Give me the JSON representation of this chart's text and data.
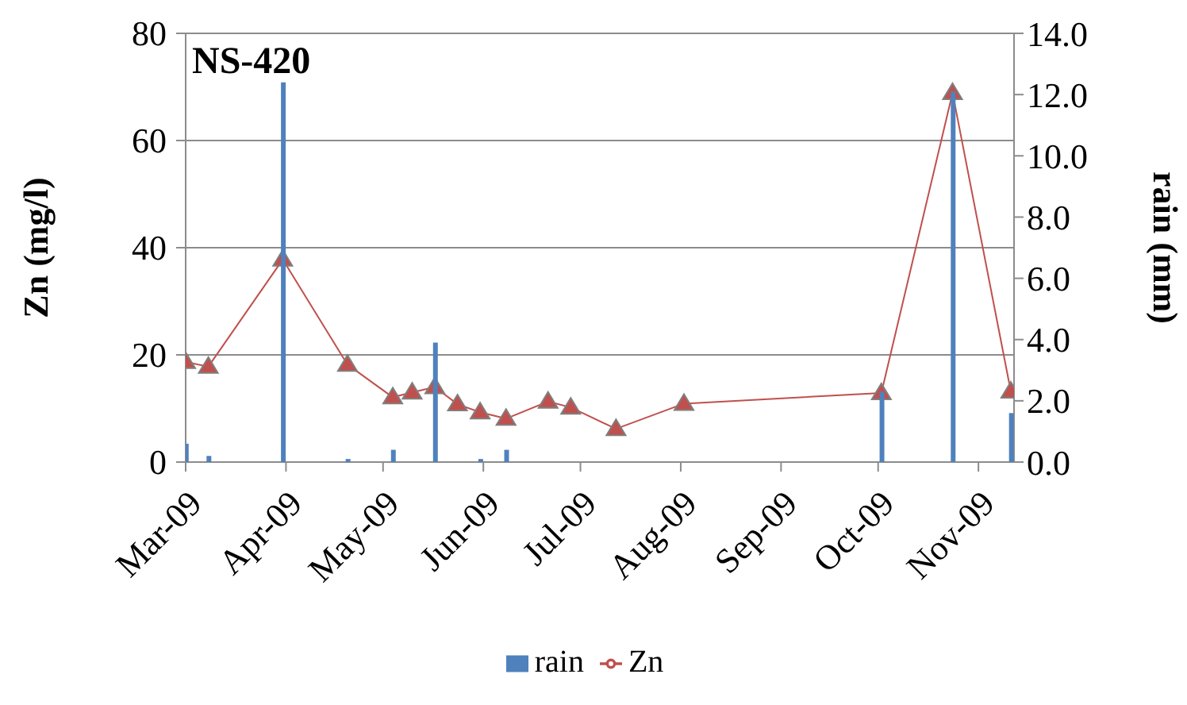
{
  "chart_data": {
    "type": "line",
    "title": "NS-420",
    "ylabel": "Zn (mg/l)",
    "y2label": "rain (mm)",
    "x": [
      "2009-03-01",
      "2009-03-08",
      "2009-03-31",
      "2009-04-20",
      "2009-05-04",
      "2009-05-10",
      "2009-05-17",
      "2009-05-24",
      "2009-05-31",
      "2009-06-08",
      "2009-06-21",
      "2009-06-28",
      "2009-07-12",
      "2009-08-02",
      "2009-10-02",
      "2009-10-24",
      "2009-11-11"
    ],
    "series": [
      {
        "name": "rain",
        "type": "bar",
        "axis": "y2",
        "color": "#4f81bd",
        "values": [
          0.6,
          0.2,
          12.4,
          0.1,
          0.4,
          null,
          3.9,
          null,
          0.1,
          0.4,
          null,
          null,
          null,
          null,
          2.3,
          12.1,
          1.6
        ]
      },
      {
        "name": "Zn",
        "type": "line",
        "color": "#c0504d",
        "marker": "triangle",
        "line_style": "solid",
        "values": [
          18.7,
          17.8,
          37.8,
          18.2,
          12.1,
          13.0,
          14.0,
          10.8,
          9.3,
          8.1,
          11.3,
          10.2,
          6.2,
          10.9,
          12.9,
          68.9,
          13.2
        ]
      }
    ],
    "xlim": [
      "2009-03-01",
      "2009-11-12"
    ],
    "xticks": [
      {
        "value": "2009-03-01",
        "label": "Mar-09"
      },
      {
        "value": "2009-04-01",
        "label": "Apr-09"
      },
      {
        "value": "2009-05-01",
        "label": "May-09"
      },
      {
        "value": "2009-06-01",
        "label": "Jun-09"
      },
      {
        "value": "2009-07-01",
        "label": "Jul-09"
      },
      {
        "value": "2009-08-01",
        "label": "Aug-09"
      },
      {
        "value": "2009-09-01",
        "label": "Sep-09"
      },
      {
        "value": "2009-10-01",
        "label": "Oct-09"
      },
      {
        "value": "2009-11-01",
        "label": "Nov-09"
      }
    ],
    "ylim": [
      0,
      80
    ],
    "yticks": [
      0,
      20,
      40,
      60,
      80
    ],
    "y2lim": [
      0,
      14
    ],
    "y2ticks": [
      {
        "value": 0,
        "label": "0.0"
      },
      {
        "value": 2,
        "label": "2.0"
      },
      {
        "value": 4,
        "label": "4.0"
      },
      {
        "value": 6,
        "label": "6.0"
      },
      {
        "value": 8,
        "label": "8.0"
      },
      {
        "value": 10,
        "label": "10.0"
      },
      {
        "value": 12,
        "label": "12.0"
      },
      {
        "value": 14,
        "label": "14.0"
      }
    ],
    "grid": "y",
    "legend": "bottom"
  }
}
